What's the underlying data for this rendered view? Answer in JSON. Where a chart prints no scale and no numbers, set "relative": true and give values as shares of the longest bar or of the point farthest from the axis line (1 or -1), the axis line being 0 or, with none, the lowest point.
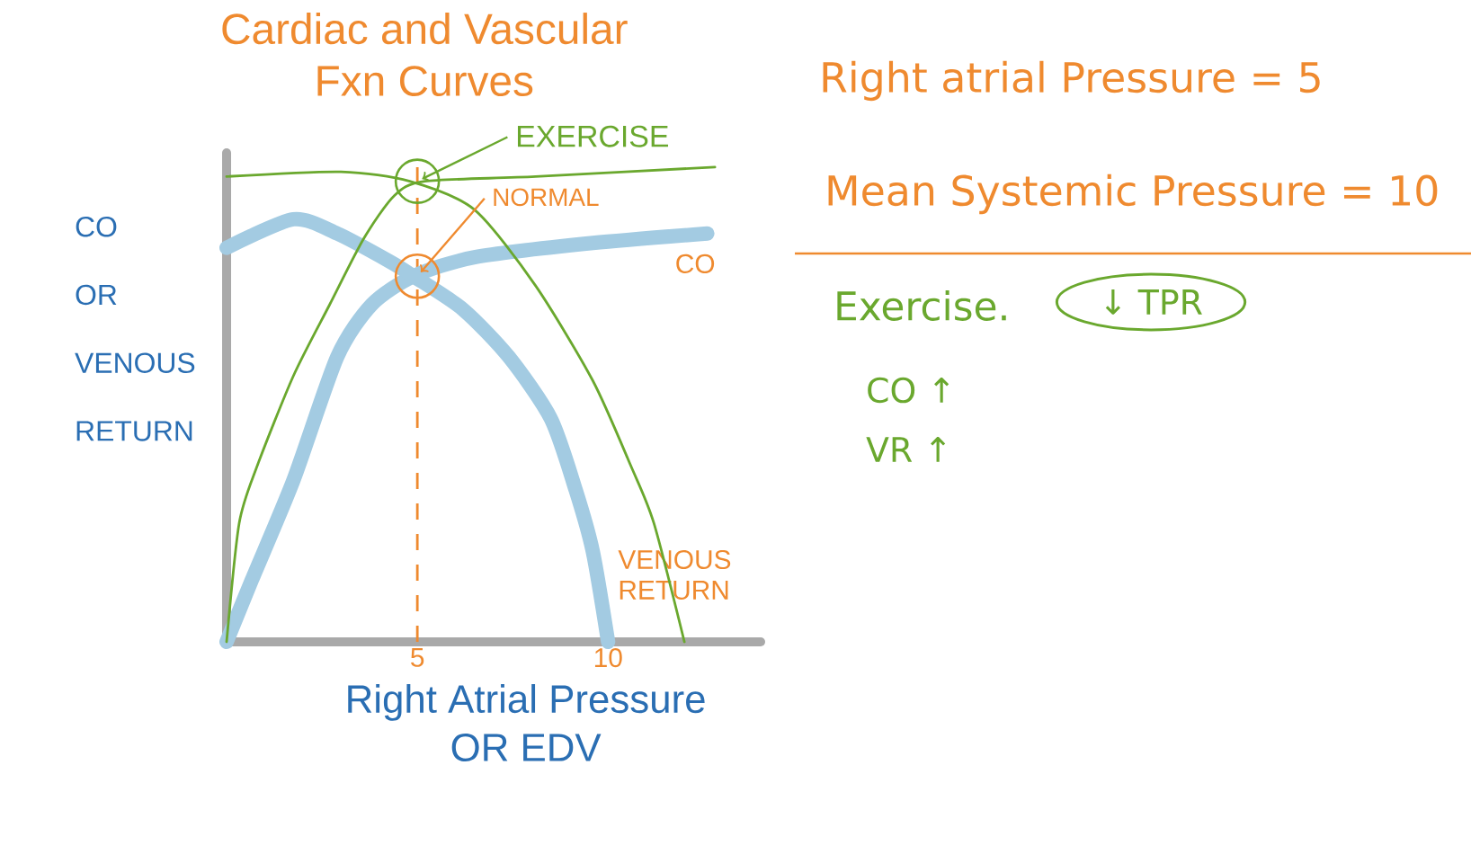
{
  "chart_data": [
    {
      "type": "line",
      "title": "Cardiac and Vascular Fxn Curves",
      "xlabel": "Right Atrial Pressure OR EDV",
      "ylabel": "CO OR VENOUS RETURN",
      "relative": true,
      "xlim": [
        0,
        14
      ],
      "xticks": [
        5,
        10
      ],
      "series": [
        {
          "name": "CO",
          "color": "#a3cbe2",
          "x": [
            0,
            0.66,
            1.75,
            2.9,
            3.8,
            4.9,
            6.5,
            9.6,
            12.6
          ],
          "values": [
            0,
            0.13,
            0.34,
            0.6,
            0.71,
            0.77,
            0.81,
            0.84,
            0.86
          ]
        },
        {
          "name": "VENOUS RETURN",
          "color": "#a3cbe2",
          "x": [
            0,
            1.75,
            2.9,
            4.3,
            4.9,
            6.2,
            7.4,
            8.5,
            9.15,
            9.6,
            10
          ],
          "values": [
            0.83,
            0.89,
            0.86,
            0.8,
            0.77,
            0.7,
            0.6,
            0.47,
            0.32,
            0.19,
            0
          ]
        },
        {
          "color": "#6aa82e",
          "x": [
            0,
            0.33,
            0.8,
            1.75,
            2.7,
            3.6,
            4.4,
            5.2,
            8.1,
            12.8
          ],
          "values": [
            0,
            0.25,
            0.37,
            0.56,
            0.71,
            0.85,
            0.94,
            0.97,
            0.98,
            1
          ]
        },
        {
          "color": "#6aa82e",
          "x": [
            0,
            3,
            4.8,
            6.5,
            8.1,
            9.6,
            10.6,
            11.2,
            12
          ],
          "values": [
            0.98,
            0.99,
            0.97,
            0.91,
            0.75,
            0.55,
            0.37,
            0.25,
            0
          ]
        }
      ],
      "ref_lines": [
        {
          "axis": "x",
          "value": 5,
          "color": "#ef8a2f",
          "line_style": "dashed"
        }
      ],
      "annotations": [
        {
          "text": "EXERCISE",
          "x": 5,
          "y": 0.97
        },
        {
          "text": "NORMAL",
          "x": 5,
          "y": 0.77
        }
      ]
    },
    {
      "type": "other",
      "annotations": [
        "Right atrial Pressure = 5",
        "Mean Systemic Pressure = 10",
        "Exercise.",
        "↓ TPR",
        "CO ↑",
        "VR ↑"
      ]
    }
  ]
}
